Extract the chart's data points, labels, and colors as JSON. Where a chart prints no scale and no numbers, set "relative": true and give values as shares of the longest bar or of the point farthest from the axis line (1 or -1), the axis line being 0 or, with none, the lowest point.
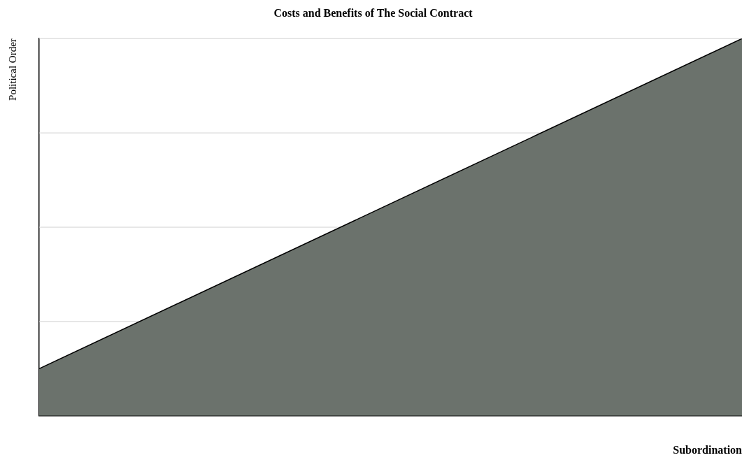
{
  "chart_data": {
    "type": "area",
    "title": "Costs and Benefits of The Social Contract",
    "xlabel": "Subordination",
    "ylabel": "Political Order",
    "categories": [
      null,
      null
    ],
    "relative": true,
    "legend": false,
    "marker": "none",
    "ref_lines": [
      {
        "axis": "y",
        "value": 0.25,
        "color": "#d0d0d0"
      },
      {
        "axis": "y",
        "value": 0.5,
        "color": "#d0d0d0"
      },
      {
        "axis": "y",
        "value": 0.75,
        "color": "#d0d0d0"
      },
      {
        "axis": "y",
        "value": 1,
        "color": "#d0d0d0"
      }
    ],
    "series": [
      {
        "color": "#6b726c",
        "values": [
          0.125,
          1
        ]
      }
    ]
  }
}
